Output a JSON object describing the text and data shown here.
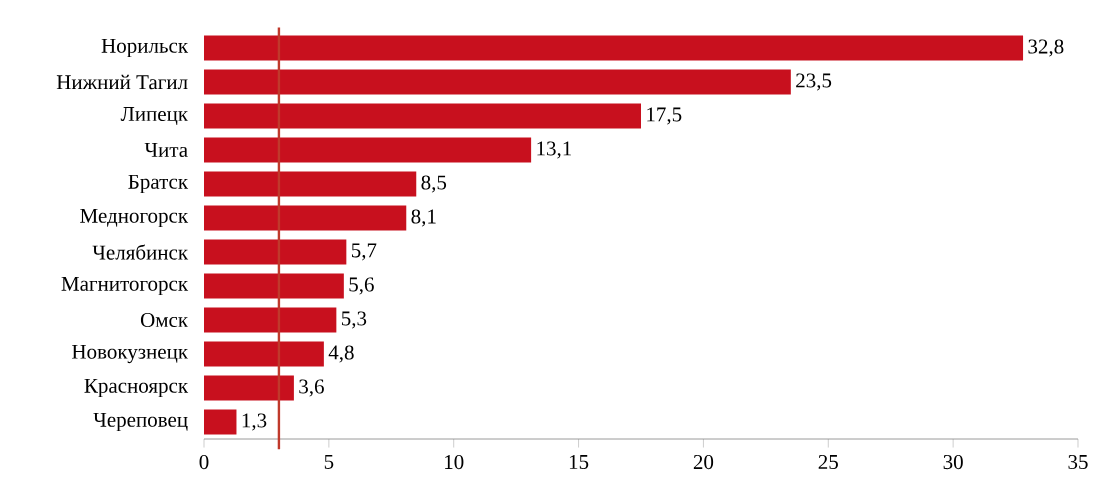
{
  "chart_data": {
    "type": "bar",
    "orientation": "horizontal",
    "categories": [
      "Норильск",
      "Нижний Тагил",
      "Липецк",
      "Чита",
      "Братск",
      "Медногорск",
      "Челябинск",
      "Магнитогорск",
      "Омск",
      "Новокузнецк",
      "Красноярск",
      "Череповец"
    ],
    "values": [
      32.8,
      23.5,
      17.5,
      13.1,
      8.5,
      8.1,
      5.7,
      5.6,
      5.3,
      4.8,
      3.6,
      1.3
    ],
    "value_labels": [
      "32,8",
      "23,5",
      "17,5",
      "13,1",
      "8,5",
      "8,1",
      "5,7",
      "5,6",
      "5,3",
      "4,8",
      "3,6",
      "1,3"
    ],
    "color": "#c8101e",
    "xlim": [
      0,
      35
    ],
    "xticks": [
      0,
      5,
      10,
      15,
      20,
      25,
      30,
      35
    ],
    "ref_lines": [
      {
        "axis": "x",
        "value": 3,
        "color": "#c0392b"
      }
    ]
  }
}
